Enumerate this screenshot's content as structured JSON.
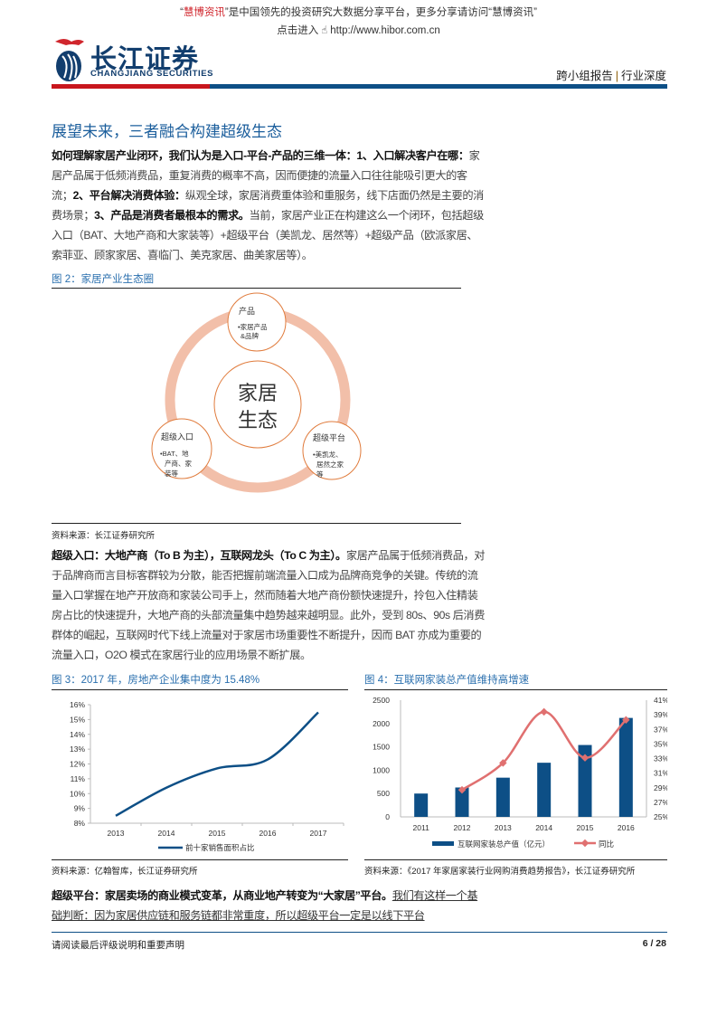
{
  "banner": {
    "line1_quote_open": "“",
    "brand": "慧博资讯",
    "line1_rest": "”是中国领先的投资研究大数据分享平台，更多分享请访问“慧博资讯”",
    "line2_prefix": "点击进入",
    "url": "http://www.hibor.com.cn"
  },
  "header": {
    "logo_cn": "长江证券",
    "logo_en": "CHANGJIANG SECURITIES",
    "report_type": "跨小组报告",
    "report_category": "行业深度",
    "colors": {
      "red": "#c8161d",
      "blue": "#0d4f86"
    }
  },
  "section_title": "展望未来，三者融合构建超级生态",
  "para1": {
    "b1": "如何理解家居产业闭环，我们认为是入口-平台-产品的三维一体：1、入口解决客户在哪：",
    "t1": "家居产品属于低频消费品，重复消费的概率不高，因而便捷的流量入口往往能吸引更大的客流；",
    "b2": "2、平台解决消费体验：",
    "t2": "纵观全球，家居消费重体验和重服务，线下店面仍然是主要的消费场景；",
    "b3": "3、产品是消费者最根本的需求。",
    "t3": "当前，家居产业正在构建这么一个闭环，包括超级入口（BAT、大地产商和大家装等）+超级平台（美凯龙、居然等）+超级产品（欧派家居、索菲亚、顾家家居、喜临门、美克家居、曲美家居等）。"
  },
  "figure2": {
    "label": "图 2：家居产业生态圈",
    "center": [
      "家居",
      "生态"
    ],
    "nodes": [
      {
        "title": "产品",
        "body": [
          "•家居产品",
          "&品牌"
        ]
      },
      {
        "title": "超级入口",
        "body": [
          "•BAT、地",
          "产商、家",
          "装等"
        ]
      },
      {
        "title": "超级平台",
        "body": [
          "•美凯龙、",
          "居然之家",
          "等"
        ]
      }
    ],
    "source": "资料来源：长江证券研究所"
  },
  "para2": {
    "b1": "超级入口：大地产商（To B 为主），互联网龙头（To C 为主）。",
    "t1": "家居产品属于低频消费品，对于品牌商而言目标客群较为分散，能否把握前端流量入口成为品牌商竞争的关键。传统的流量入口掌握在地产开放商和家装公司手上，然而随着大地产商份额快速提升，拎包入住精装房占比的快速提升，大地产商的头部流量集中趋势越来越明显。此外，受到 80s、90s 后消费群体的崛起，互联网时代下线上流量对于家居市场重要性不断提升，因而 BAT 亦成为重要的流量入口，O2O 模式在家居行业的应用场景不断扩展。"
  },
  "chart_data": [
    {
      "type": "line",
      "title": "图 3：2017 年，房地产企业集中度为 15.48%",
      "categories": [
        "2013",
        "2014",
        "2015",
        "2016",
        "2017"
      ],
      "series": [
        {
          "name": "前十家销售面积占比",
          "values": [
            8.5,
            10.4,
            11.7,
            12.3,
            15.48
          ],
          "color": "#0d4f86"
        }
      ],
      "ylim": [
        8,
        16
      ],
      "yticks": [
        "8%",
        "9%",
        "10%",
        "11%",
        "12%",
        "13%",
        "14%",
        "15%",
        "16%"
      ],
      "legend": "bottom",
      "source": "资料来源：亿翰智库，长江证券研究所"
    },
    {
      "type": "bar+line",
      "title": "图 4：互联网家装总产值维持高增速",
      "categories": [
        "2011",
        "2012",
        "2013",
        "2014",
        "2015",
        "2016"
      ],
      "series": [
        {
          "name": "互联网家装总产值（亿元）",
          "type": "bar",
          "axis": "left",
          "values": [
            500,
            630,
            840,
            1160,
            1540,
            2120
          ],
          "color": "#0d4f86"
        },
        {
          "name": "同比",
          "type": "line",
          "axis": "right",
          "values": [
            null,
            28.7,
            32.4,
            39.4,
            33.1,
            38.3
          ],
          "color": "#e07070"
        }
      ],
      "ylim_left": [
        0,
        2500
      ],
      "yticks_left": [
        "0",
        "500",
        "1000",
        "1500",
        "2000",
        "2500"
      ],
      "ylim_right": [
        25,
        41
      ],
      "yticks_right": [
        "25%",
        "27%",
        "29%",
        "31%",
        "33%",
        "35%",
        "37%",
        "39%",
        "41%"
      ],
      "legend": "bottom",
      "source": "资料来源：《2017 年家居家装行业网购消费趋势报告》，长江证券研究所"
    }
  ],
  "para3": {
    "b1": "超级平台：家居卖场的商业模式变革，从商业地产转变为“大家居”平台。",
    "u1": "我们有这样一个基础判断：因为家居供应链和服务链都非常重度，所以超级平台一定是以线下平台"
  },
  "footer": {
    "disclaimer": "请阅读最后评级说明和重要声明",
    "page": "6 / 28"
  }
}
